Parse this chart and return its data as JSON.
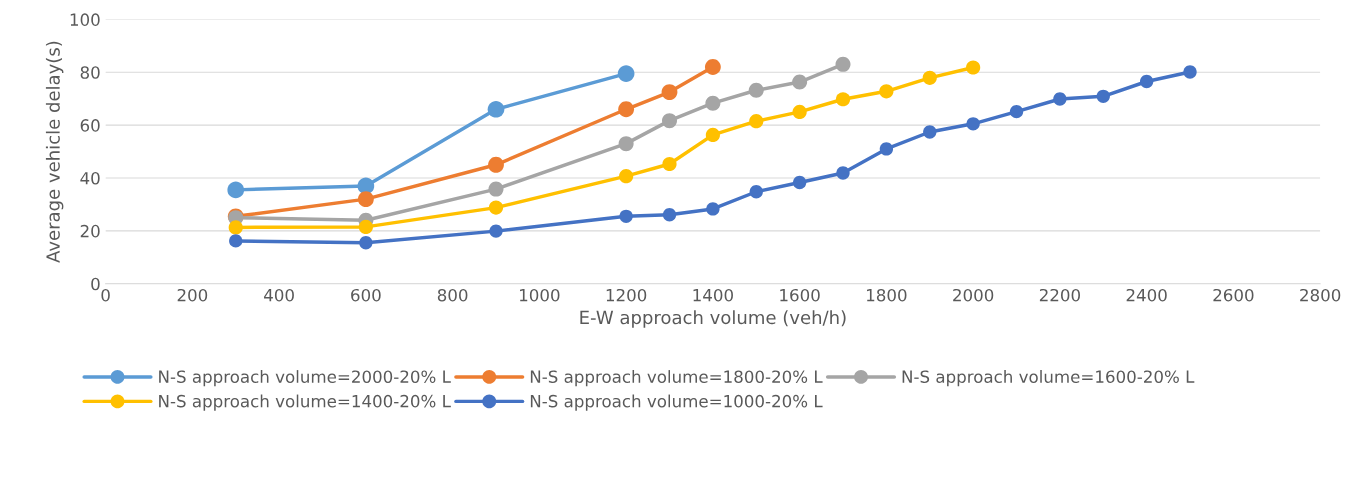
{
  "chart_data": {
    "type": "line",
    "xlabel": "E-W approach volume (veh/h)",
    "ylabel": "Average vehicle delay(s)",
    "xlim": [
      0,
      2800
    ],
    "xticks": [
      0,
      200,
      400,
      600,
      800,
      1000,
      1200,
      1400,
      1600,
      1800,
      2000,
      2200,
      2400,
      2600,
      2800
    ],
    "ylim": [
      0,
      100
    ],
    "yticks": [
      0,
      20,
      40,
      60,
      80,
      100
    ],
    "grid": "y",
    "legend": "bottom",
    "marker": "circle",
    "line_style": "solid",
    "series": [
      {
        "name": "N-S approach volume=2000-20% L",
        "color": "#5b9bd5",
        "x": [
          300,
          600,
          900,
          1200
        ],
        "values": [
          35.5,
          37,
          66,
          79.5
        ]
      },
      {
        "name": "N-S approach volume=1800-20% L",
        "color": "#ed7d31",
        "x": [
          300,
          600,
          900,
          1200,
          1300,
          1400
        ],
        "values": [
          25.5,
          32,
          45,
          66,
          72.5,
          82
        ]
      },
      {
        "name": "N-S approach volume=1600-20% L",
        "color": "#a5a5a5",
        "x": [
          300,
          600,
          900,
          1200,
          1300,
          1400,
          1500,
          1600,
          1700
        ],
        "values": [
          25,
          24,
          35.8,
          53,
          61.7,
          68.3,
          73.2,
          76.3,
          83
        ]
      },
      {
        "name": "N-S approach volume=1400-20% L",
        "color": "#ffc000",
        "x": [
          300,
          600,
          900,
          1200,
          1300,
          1400,
          1500,
          1600,
          1700,
          1800,
          1900,
          2000
        ],
        "values": [
          21.3,
          21.5,
          28.8,
          40.7,
          45.3,
          56.3,
          61.5,
          65,
          69.8,
          72.8,
          77.9,
          81.8
        ]
      },
      {
        "name": "N-S approach volume=1000-20% L",
        "color": "#4472c4",
        "x": [
          300,
          600,
          900,
          1200,
          1300,
          1400,
          1500,
          1600,
          1700,
          1800,
          1900,
          2000,
          2100,
          2200,
          2300,
          2400,
          2500
        ],
        "values": [
          16.2,
          15.5,
          19.9,
          25.5,
          26.1,
          28.3,
          34.8,
          38.3,
          41.9,
          51,
          57.4,
          60.5,
          65.1,
          69.9,
          70.9,
          76.5,
          80.1
        ]
      }
    ]
  }
}
